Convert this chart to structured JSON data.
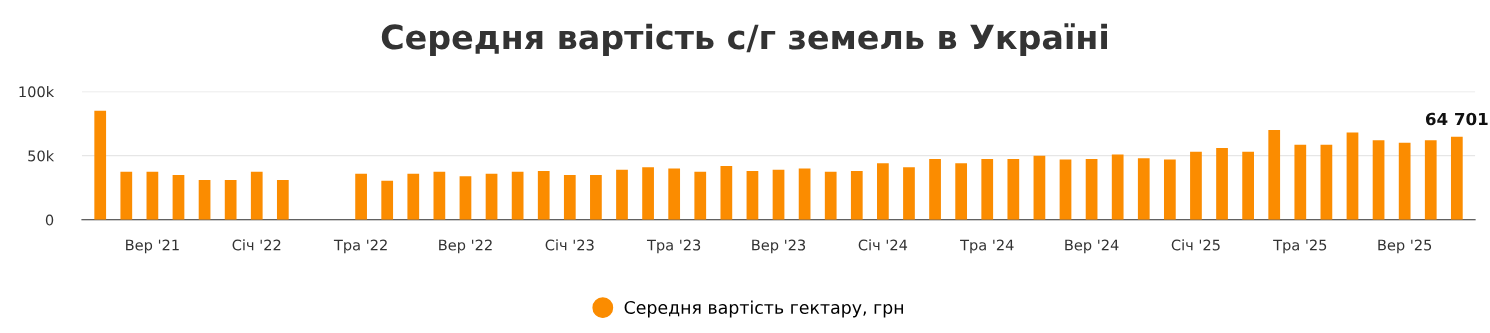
{
  "chart_data": {
    "type": "bar",
    "title": "Середня вартість с/г земель в Україні",
    "categories": [
      null,
      null,
      "Вер '21",
      null,
      null,
      null,
      "Січ '22",
      null,
      null,
      null,
      "Тра '22",
      null,
      null,
      null,
      "Вер '22",
      null,
      null,
      null,
      "Січ '23",
      null,
      null,
      null,
      "Тра '23",
      null,
      null,
      null,
      "Вер '23",
      null,
      null,
      null,
      "Січ '24",
      null,
      null,
      null,
      "Тра '24",
      null,
      null,
      null,
      "Вер '24",
      null,
      null,
      null,
      "Січ '25",
      null,
      null,
      null,
      "Тра '25",
      null,
      null,
      null,
      "Вер '25",
      null,
      null
    ],
    "series": [
      {
        "name": "Середня вартість гектару, грн",
        "color": "#fb8c00",
        "values": [
          85000,
          37500,
          37500,
          35000,
          31000,
          31000,
          37500,
          31000,
          null,
          null,
          36000,
          30500,
          36000,
          37500,
          34000,
          36000,
          37500,
          38000,
          35000,
          35000,
          39000,
          41000,
          40000,
          37500,
          42000,
          38000,
          39000,
          40000,
          37500,
          38000,
          44000,
          41000,
          47500,
          44000,
          47500,
          47500,
          50000,
          47000,
          47500,
          51000,
          48000,
          47000,
          53000,
          56000,
          53000,
          70000,
          58500,
          58500,
          68000,
          62000,
          60000,
          62000,
          64701
        ],
        "value_labels": [
          null,
          null,
          null,
          null,
          null,
          null,
          null,
          null,
          null,
          null,
          null,
          null,
          null,
          null,
          null,
          null,
          null,
          null,
          null,
          null,
          null,
          null,
          null,
          null,
          null,
          null,
          null,
          null,
          null,
          null,
          null,
          null,
          null,
          null,
          null,
          null,
          null,
          null,
          null,
          null,
          null,
          null,
          null,
          null,
          null,
          null,
          null,
          null,
          null,
          null,
          null,
          null,
          "64 701"
        ]
      }
    ],
    "ylim": [
      0,
      100000
    ],
    "yticks": [
      {
        "value": 0,
        "label": "0"
      },
      {
        "value": 50000,
        "label": "50k"
      },
      {
        "value": 100000,
        "label": "100k"
      }
    ],
    "grid": "y",
    "legend": "bottom"
  }
}
